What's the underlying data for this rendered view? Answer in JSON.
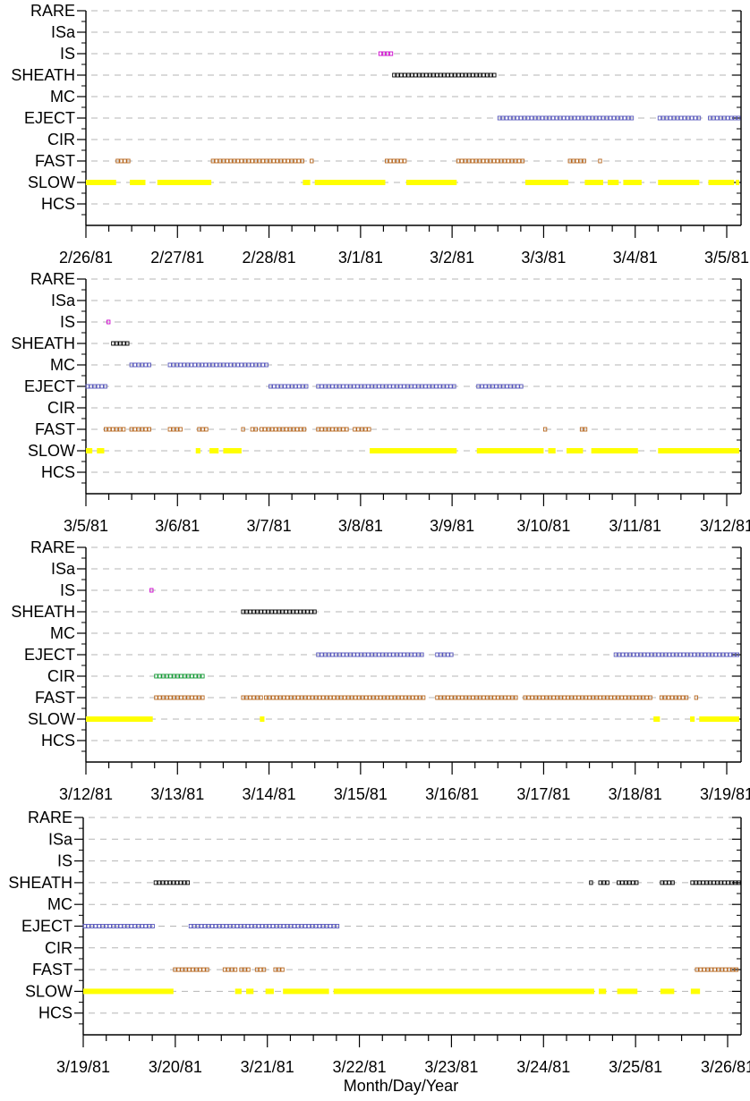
{
  "chart_data": [
    {
      "type": "timeline",
      "x_ticks": [
        "2/26/81",
        "2/27/81",
        "2/28/81",
        "3/1/81",
        "3/2/81",
        "3/3/81",
        "3/4/81",
        "3/5/81"
      ],
      "x_range_days": [
        0,
        7.1
      ],
      "categories": [
        "RARE",
        "ISa",
        "IS",
        "SHEATH",
        "MC",
        "EJECT",
        "CIR",
        "FAST",
        "SLOW",
        "HCS"
      ],
      "series": [
        {
          "category": "IS",
          "style": "box",
          "color": "#cc00cc",
          "intervals": [
            [
              3.2,
              3.35
            ]
          ]
        },
        {
          "category": "SHEATH",
          "style": "box",
          "color": "#000000",
          "intervals": [
            [
              3.35,
              4.5
            ]
          ]
        },
        {
          "category": "EJECT",
          "style": "box",
          "color": "#5555bb",
          "intervals": [
            [
              4.5,
              6.0
            ],
            [
              6.25,
              6.7
            ],
            [
              6.8,
              7.15
            ]
          ]
        },
        {
          "category": "FAST",
          "style": "box",
          "color": "#b5651d",
          "intervals": [
            [
              0.33,
              0.48
            ],
            [
              1.37,
              2.37
            ],
            [
              2.45,
              2.5
            ],
            [
              3.27,
              3.5
            ],
            [
              4.05,
              4.8
            ],
            [
              5.27,
              5.45
            ],
            [
              5.6,
              5.65
            ]
          ]
        },
        {
          "category": "SLOW",
          "style": "bar",
          "color": "#ffff00",
          "intervals": [
            [
              0.0,
              0.33
            ],
            [
              0.48,
              0.65
            ],
            [
              0.78,
              1.37
            ],
            [
              2.37,
              2.45
            ],
            [
              2.5,
              3.27
            ],
            [
              3.5,
              4.05
            ],
            [
              4.8,
              5.27
            ],
            [
              5.45,
              5.65
            ],
            [
              5.7,
              5.82
            ],
            [
              5.87,
              6.07
            ],
            [
              6.25,
              6.7
            ],
            [
              6.8,
              7.08
            ],
            [
              7.1,
              7.15
            ]
          ]
        }
      ]
    },
    {
      "type": "timeline",
      "x_ticks": [
        "3/5/81",
        "3/6/81",
        "3/7/81",
        "3/8/81",
        "3/9/81",
        "3/10/81",
        "3/11/81",
        "3/12/81"
      ],
      "x_range_days": [
        0,
        7.1
      ],
      "categories": [
        "RARE",
        "ISa",
        "IS",
        "SHEATH",
        "MC",
        "EJECT",
        "CIR",
        "FAST",
        "SLOW",
        "HCS"
      ],
      "series": [
        {
          "category": "IS",
          "style": "box",
          "color": "#cc00cc",
          "intervals": [
            [
              0.23,
              0.28
            ]
          ]
        },
        {
          "category": "SHEATH",
          "style": "box",
          "color": "#000000",
          "intervals": [
            [
              0.28,
              0.48
            ]
          ]
        },
        {
          "category": "MC",
          "style": "box",
          "color": "#5555bb",
          "intervals": [
            [
              0.48,
              0.73
            ],
            [
              0.9,
              2.0
            ]
          ]
        },
        {
          "category": "EJECT",
          "style": "box",
          "color": "#5555bb",
          "intervals": [
            [
              0.0,
              0.23
            ],
            [
              2.0,
              2.42
            ],
            [
              2.52,
              4.05
            ],
            [
              4.27,
              4.78
            ]
          ]
        },
        {
          "category": "FAST",
          "style": "box",
          "color": "#b5651d",
          "intervals": [
            [
              0.2,
              0.45
            ],
            [
              0.48,
              0.73
            ],
            [
              0.9,
              1.07
            ],
            [
              1.22,
              1.35
            ],
            [
              1.7,
              1.75
            ],
            [
              1.8,
              1.87
            ],
            [
              1.9,
              2.42
            ],
            [
              2.52,
              2.87
            ],
            [
              2.92,
              3.1
            ],
            [
              5.0,
              5.05
            ],
            [
              5.4,
              5.48
            ]
          ]
        },
        {
          "category": "SLOW",
          "style": "bar",
          "color": "#ffff00",
          "intervals": [
            [
              0.0,
              0.07
            ],
            [
              0.12,
              0.2
            ],
            [
              1.2,
              1.25
            ],
            [
              1.35,
              1.45
            ],
            [
              1.5,
              1.7
            ],
            [
              3.1,
              4.05
            ],
            [
              4.27,
              5.0
            ],
            [
              5.05,
              5.13
            ],
            [
              5.25,
              5.43
            ],
            [
              5.52,
              6.03
            ],
            [
              6.25,
              7.15
            ]
          ]
        }
      ]
    },
    {
      "type": "timeline",
      "x_ticks": [
        "3/12/81",
        "3/13/81",
        "3/14/81",
        "3/15/81",
        "3/16/81",
        "3/17/81",
        "3/18/81",
        "3/19/81"
      ],
      "x_range_days": [
        0,
        7.1
      ],
      "categories": [
        "RARE",
        "ISa",
        "IS",
        "SHEATH",
        "MC",
        "EJECT",
        "CIR",
        "FAST",
        "SLOW",
        "HCS"
      ],
      "series": [
        {
          "category": "IS",
          "style": "box",
          "color": "#cc00cc",
          "intervals": [
            [
              0.7,
              0.74
            ]
          ]
        },
        {
          "category": "SHEATH",
          "style": "box",
          "color": "#000000",
          "intervals": [
            [
              1.7,
              2.52
            ]
          ]
        },
        {
          "category": "EJECT",
          "style": "box",
          "color": "#5555bb",
          "intervals": [
            [
              2.52,
              3.7
            ],
            [
              3.82,
              4.0
            ],
            [
              5.77,
              7.15
            ]
          ]
        },
        {
          "category": "CIR",
          "style": "box",
          "color": "#119933",
          "intervals": [
            [
              0.75,
              1.28
            ]
          ]
        },
        {
          "category": "FAST",
          "style": "box",
          "color": "#b5651d",
          "intervals": [
            [
              0.75,
              1.28
            ],
            [
              1.7,
              1.92
            ],
            [
              1.95,
              3.7
            ],
            [
              3.82,
              4.7
            ],
            [
              4.78,
              6.2
            ],
            [
              6.27,
              6.6
            ],
            [
              6.65,
              6.7
            ]
          ]
        },
        {
          "category": "SLOW",
          "style": "bar",
          "color": "#ffff00",
          "intervals": [
            [
              0.0,
              0.73
            ],
            [
              1.9,
              1.95
            ],
            [
              6.2,
              6.27
            ],
            [
              6.6,
              6.65
            ],
            [
              6.7,
              7.15
            ]
          ]
        }
      ]
    },
    {
      "type": "timeline",
      "x_ticks": [
        "3/19/81",
        "3/20/81",
        "3/21/81",
        "3/22/81",
        "3/23/81",
        "3/24/81",
        "3/25/81",
        "3/26/81"
      ],
      "x_range_days": [
        0,
        7.05
      ],
      "xlabel": "Month/Day/Year",
      "categories": [
        "RARE",
        "ISa",
        "IS",
        "SHEATH",
        "MC",
        "EJECT",
        "CIR",
        "FAST",
        "SLOW",
        "HCS"
      ],
      "series": [
        {
          "category": "SHEATH",
          "style": "box",
          "color": "#000000",
          "intervals": [
            [
              0.77,
              1.15
            ],
            [
              5.5,
              5.55
            ],
            [
              5.6,
              5.7
            ],
            [
              5.8,
              6.02
            ],
            [
              6.27,
              6.42
            ],
            [
              6.6,
              7.15
            ]
          ]
        },
        {
          "category": "EJECT",
          "style": "box",
          "color": "#5555bb",
          "intervals": [
            [
              0.0,
              0.77
            ],
            [
              1.15,
              2.8
            ]
          ]
        },
        {
          "category": "FAST",
          "style": "box",
          "color": "#b5651d",
          "intervals": [
            [
              0.98,
              1.37
            ],
            [
              1.52,
              1.67
            ],
            [
              1.7,
              1.8
            ],
            [
              1.87,
              2.0
            ],
            [
              2.07,
              2.17
            ],
            [
              6.65,
              7.15
            ]
          ]
        },
        {
          "category": "SLOW",
          "style": "bar",
          "color": "#ffff00",
          "intervals": [
            [
              0.0,
              0.98
            ],
            [
              1.65,
              1.72
            ],
            [
              1.77,
              1.85
            ],
            [
              1.98,
              2.07
            ],
            [
              2.17,
              2.67
            ],
            [
              2.72,
              5.55
            ],
            [
              5.6,
              5.68
            ],
            [
              5.8,
              6.02
            ],
            [
              6.27,
              6.42
            ],
            [
              6.6,
              6.7
            ]
          ]
        }
      ]
    }
  ]
}
